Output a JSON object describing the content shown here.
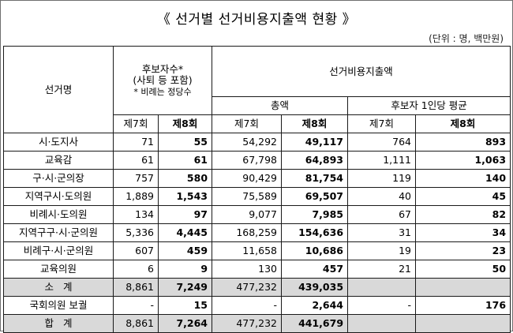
{
  "title": "《 선거별 선거비용지출액 현황 》",
  "unit_note": "(단위 : 명, 백만원)",
  "headers": {
    "election_name": "선거명",
    "candidates_line1": "후보자수*",
    "candidates_line2": "(사퇴 등 포함)",
    "candidates_note": "* 비례는 정당수",
    "expenditure": "선거비용지출액",
    "total_amount": "총액",
    "per_candidate_avg": "후보자 1인당 평균",
    "round7": "제7회",
    "round8": "제8회"
  },
  "rows": [
    {
      "name": "시·도지사",
      "cand7": "71",
      "cand8": "55",
      "tot7": "54,292",
      "tot8": "49,117",
      "avg7": "764",
      "avg8": "893"
    },
    {
      "name": "교육감",
      "cand7": "61",
      "cand8": "61",
      "tot7": "67,798",
      "tot8": "64,893",
      "avg7": "1,111",
      "avg8": "1,063"
    },
    {
      "name": "구·시·군의장",
      "cand7": "757",
      "cand8": "580",
      "tot7": "90,429",
      "tot8": "81,754",
      "avg7": "119",
      "avg8": "140"
    },
    {
      "name": "지역구시·도의원",
      "cand7": "1,889",
      "cand8": "1,543",
      "tot7": "75,589",
      "tot8": "69,507",
      "avg7": "40",
      "avg8": "45"
    },
    {
      "name": "비례시·도의원",
      "cand7": "134",
      "cand8": "97",
      "tot7": "9,077",
      "tot8": "7,985",
      "avg7": "67",
      "avg8": "82"
    },
    {
      "name": "지역구구·시·군의원",
      "cand7": "5,336",
      "cand8": "4,445",
      "tot7": "168,259",
      "tot8": "154,636",
      "avg7": "31",
      "avg8": "34"
    },
    {
      "name": "비례구·시·군의원",
      "cand7": "607",
      "cand8": "459",
      "tot7": "11,658",
      "tot8": "10,686",
      "avg7": "19",
      "avg8": "23"
    },
    {
      "name": "교육의원",
      "cand7": "6",
      "cand8": "9",
      "tot7": "130",
      "tot8": "457",
      "avg7": "21",
      "avg8": "50"
    }
  ],
  "subtotal": {
    "name": "소   계",
    "cand7": "8,861",
    "cand8": "7,249",
    "tot7": "477,232",
    "tot8": "439,035",
    "avg7": "",
    "avg8": ""
  },
  "byelection": {
    "name": "국회의원 보궐",
    "cand7": "-",
    "cand8": "15",
    "tot7": "-",
    "tot8": "2,644",
    "avg7": "-",
    "avg8": "176"
  },
  "total": {
    "name": "합   계",
    "cand7": "8,861",
    "cand8": "7,264",
    "tot7": "477,232",
    "tot8": "441,679",
    "avg7": "",
    "avg8": ""
  },
  "colors": {
    "summary_row_bg": "#d9d9d9",
    "border": "#1a1a1a"
  }
}
